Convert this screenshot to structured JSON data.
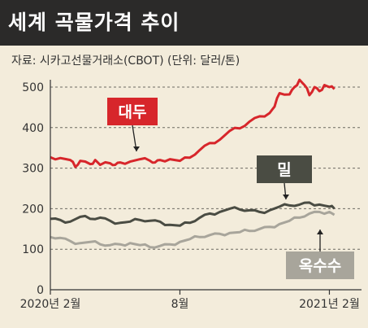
{
  "title": "세계 곡물가격 추이",
  "source": "자료: 시카고선물거래소(CBOT) (단위: 달러/톤)",
  "chart_data": {
    "type": "line",
    "ylim": [
      0,
      520
    ],
    "yticks": [
      0,
      100,
      200,
      300,
      400,
      500
    ],
    "xlim": [
      0,
      60
    ],
    "x_tick_positions": [
      0,
      26,
      56
    ],
    "x_tick_labels": [
      "2020년 2월",
      "8월",
      "2021년 2월"
    ],
    "grid": "horizontal dashed",
    "series": [
      {
        "name": "대두",
        "color": "#d7262b",
        "label_bg": "#d7262b",
        "label_color": "#ffffff",
        "x": [
          0,
          2,
          4,
          5,
          6,
          8,
          9,
          10,
          12,
          13,
          14,
          16,
          18,
          20,
          21,
          22,
          24,
          26,
          28,
          30,
          32,
          34,
          36,
          38,
          40,
          42,
          44,
          45,
          46,
          48,
          49,
          50,
          51,
          52,
          53,
          54,
          55,
          56,
          57
        ],
        "values": [
          327,
          325,
          320,
          303,
          318,
          310,
          320,
          308,
          312,
          308,
          314,
          316,
          322,
          318,
          314,
          320,
          322,
          318,
          326,
          345,
          362,
          370,
          392,
          398,
          415,
          428,
          436,
          452,
          485,
          482,
          500,
          518,
          505,
          480,
          500,
          490,
          505,
          500,
          495
        ]
      },
      {
        "name": "밀",
        "color": "#4a4c43",
        "label_bg": "#4a4c43",
        "label_color": "#ffffff",
        "x": [
          0,
          2,
          4,
          6,
          8,
          10,
          12,
          14,
          16,
          18,
          20,
          22,
          24,
          26,
          28,
          30,
          32,
          34,
          36,
          38,
          40,
          42,
          44,
          46,
          48,
          50,
          52,
          54,
          56,
          57
        ],
        "values": [
          175,
          172,
          168,
          180,
          175,
          178,
          170,
          165,
          168,
          172,
          170,
          168,
          160,
          158,
          165,
          178,
          188,
          192,
          200,
          198,
          196,
          192,
          196,
          205,
          208,
          210,
          215,
          210,
          205,
          200
        ]
      },
      {
        "name": "옥수수",
        "color": "#a8a59b",
        "label_bg": "#a8a59b",
        "label_color": "#ffffff",
        "x": [
          0,
          2,
          4,
          6,
          8,
          10,
          12,
          14,
          16,
          18,
          20,
          22,
          24,
          26,
          28,
          30,
          32,
          34,
          36,
          38,
          40,
          42,
          44,
          46,
          48,
          50,
          52,
          54,
          56,
          57
        ],
        "values": [
          130,
          128,
          120,
          115,
          118,
          112,
          110,
          112,
          115,
          110,
          105,
          108,
          112,
          118,
          125,
          130,
          135,
          138,
          140,
          142,
          145,
          150,
          155,
          162,
          170,
          178,
          188,
          192,
          192,
          185
        ]
      }
    ]
  }
}
